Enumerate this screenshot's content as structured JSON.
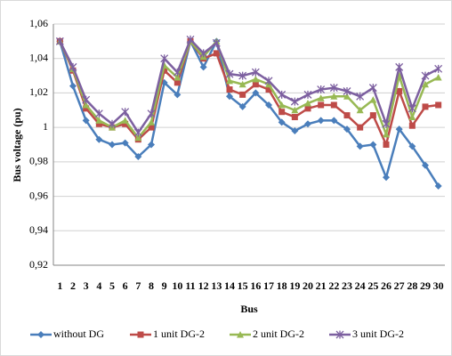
{
  "chart_data": {
    "type": "line",
    "ylabel": "Bus voltage (pu)",
    "xlabel": "Bus",
    "categories": [
      "1",
      "2",
      "3",
      "4",
      "5",
      "6",
      "7",
      "8",
      "9",
      "10",
      "11",
      "12",
      "13",
      "14",
      "15",
      "16",
      "17",
      "18",
      "19",
      "20",
      "21",
      "22",
      "23",
      "24",
      "25",
      "26",
      "27",
      "28",
      "29",
      "30"
    ],
    "series": [
      {
        "name": "without DG",
        "color": "#4a7ebb",
        "marker": "diamond",
        "values": [
          1.05,
          1.024,
          1.004,
          0.993,
          0.99,
          0.991,
          0.983,
          0.99,
          1.026,
          1.019,
          1.05,
          1.035,
          1.05,
          1.018,
          1.012,
          1.02,
          1.013,
          1.003,
          0.998,
          1.002,
          1.004,
          1.004,
          0.999,
          0.989,
          0.99,
          0.971,
          0.999,
          0.989,
          0.978,
          0.966
        ]
      },
      {
        "name": "1 unit DG-2",
        "color": "#be4b48",
        "marker": "square",
        "values": [
          1.05,
          1.033,
          1.011,
          1.002,
          1.0,
          1.002,
          0.993,
          1.0,
          1.033,
          1.026,
          1.05,
          1.04,
          1.043,
          1.022,
          1.019,
          1.025,
          1.022,
          1.009,
          1.006,
          1.011,
          1.013,
          1.013,
          1.007,
          1.0,
          1.007,
          0.99,
          1.021,
          1.001,
          1.012,
          1.013
        ]
      },
      {
        "name": "2 unit DG-2",
        "color": "#98b954",
        "marker": "triangle",
        "values": [
          1.05,
          1.034,
          1.013,
          1.004,
          1.0,
          1.004,
          0.994,
          1.003,
          1.036,
          1.029,
          1.05,
          1.041,
          1.05,
          1.027,
          1.025,
          1.028,
          1.025,
          1.013,
          1.01,
          1.014,
          1.017,
          1.018,
          1.018,
          1.01,
          1.016,
          0.996,
          1.03,
          1.006,
          1.025,
          1.029
        ]
      },
      {
        "name": "3 unit DG-2",
        "color": "#7d60a0",
        "marker": "star",
        "values": [
          1.05,
          1.035,
          1.016,
          1.008,
          1.002,
          1.009,
          0.997,
          1.008,
          1.04,
          1.032,
          1.051,
          1.043,
          1.049,
          1.031,
          1.03,
          1.032,
          1.027,
          1.019,
          1.015,
          1.019,
          1.022,
          1.023,
          1.021,
          1.018,
          1.023,
          1.002,
          1.035,
          1.011,
          1.03,
          1.034
        ]
      }
    ],
    "ylim": [
      0.92,
      1.06
    ],
    "yticks": [
      {
        "value": 0.92,
        "label": "0,92"
      },
      {
        "value": 0.94,
        "label": "0,94"
      },
      {
        "value": 0.96,
        "label": "0,96"
      },
      {
        "value": 0.98,
        "label": "0,98"
      },
      1,
      {
        "value": 1.02,
        "label": "1,02"
      },
      {
        "value": 1.04,
        "label": "1,04"
      },
      {
        "value": 1.06,
        "label": "1,06"
      }
    ],
    "grid": true,
    "legend": "bottom"
  }
}
